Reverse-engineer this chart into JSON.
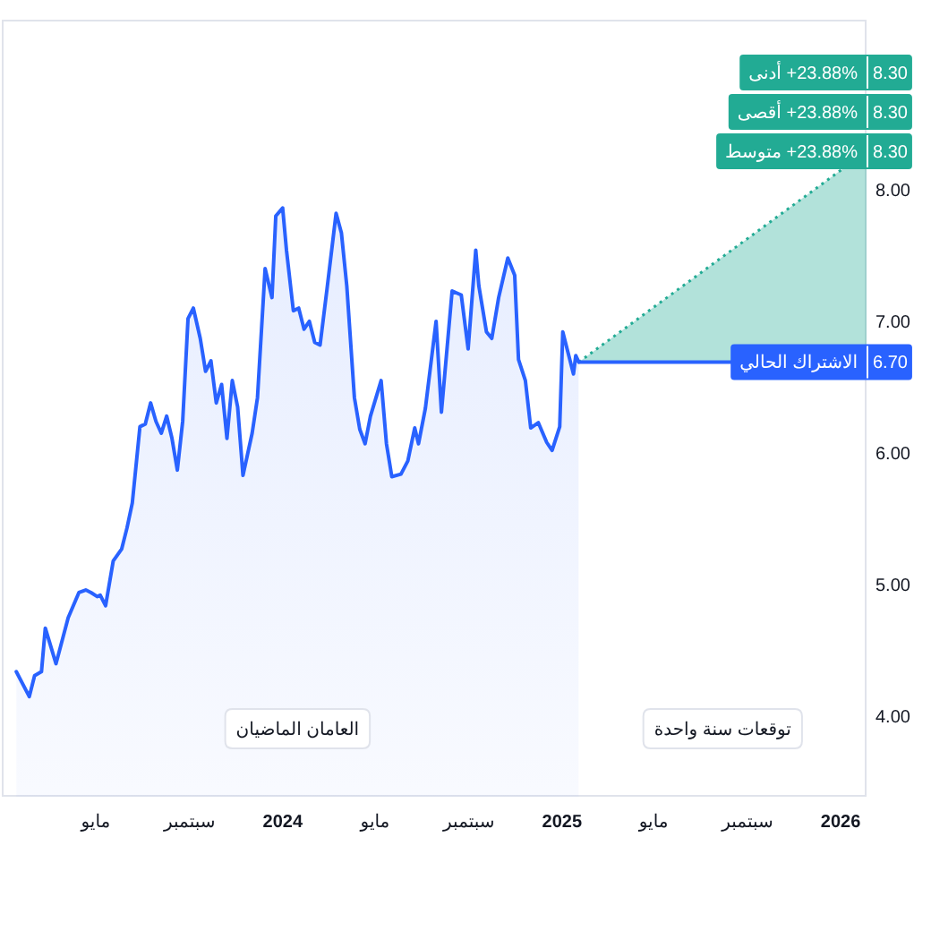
{
  "chart_data": {
    "type": "area",
    "xlim": [
      "2022-12-29",
      "2026-02-04"
    ],
    "xticks": [
      {
        "value": "2023-05-01",
        "label": "مايو"
      },
      {
        "value": "2023-09-01",
        "label": "سبتمبر"
      },
      {
        "value": "2024-01-01",
        "label": "2024"
      },
      {
        "value": "2024-05-01",
        "label": "مايو"
      },
      {
        "value": "2024-09-01",
        "label": "سبتمبر"
      },
      {
        "value": "2025-01-01",
        "label": "2025"
      },
      {
        "value": "2025-05-01",
        "label": "مايو"
      },
      {
        "value": "2025-09-01",
        "label": "سبتمبر"
      },
      {
        "value": "2026-01-01",
        "label": "2026"
      }
    ],
    "ylim": [
      3.4,
      9.3
    ],
    "yticks": [
      {
        "value": 4,
        "label": "4.00"
      },
      {
        "value": 5,
        "label": "5.00"
      },
      {
        "value": 6,
        "label": "6.00"
      },
      {
        "value": 7,
        "label": "7.00"
      },
      {
        "value": 8,
        "label": "8.00"
      }
    ],
    "series": [
      {
        "color": "#2962ff",
        "x": [
          "2023-01-17",
          "2023-02-03",
          "2023-02-10",
          "2023-02-19",
          "2023-02-24",
          "2023-03-10",
          "2023-03-26",
          "2023-04-09",
          "2023-04-18",
          "2023-04-25",
          "2023-05-03",
          "2023-05-07",
          "2023-05-14",
          "2023-05-24",
          "2023-06-04",
          "2023-06-11",
          "2023-06-18",
          "2023-06-28",
          "2023-07-05",
          "2023-07-12",
          "2023-07-19",
          "2023-07-26",
          "2023-08-02",
          "2023-08-09",
          "2023-08-16",
          "2023-08-23",
          "2023-08-30",
          "2023-09-06",
          "2023-09-15",
          "2023-09-22",
          "2023-09-29",
          "2023-10-06",
          "2023-10-13",
          "2023-10-20",
          "2023-10-27",
          "2023-11-03",
          "2023-11-10",
          "2023-11-22",
          "2023-11-29",
          "2023-12-09",
          "2023-12-18",
          "2023-12-23",
          "2024-01-01",
          "2024-01-06",
          "2024-01-15",
          "2024-01-22",
          "2024-01-29",
          "2024-02-05",
          "2024-02-12",
          "2024-02-19",
          "2024-02-28",
          "2024-03-11",
          "2024-03-18",
          "2024-03-25",
          "2024-04-04",
          "2024-04-11",
          "2024-04-18",
          "2024-04-25",
          "2024-05-09",
          "2024-05-16",
          "2024-05-23",
          "2024-06-04",
          "2024-06-13",
          "2024-06-22",
          "2024-06-27",
          "2024-07-06",
          "2024-07-20",
          "2024-07-27",
          "2024-08-10",
          "2024-08-22",
          "2024-08-31",
          "2024-09-10",
          "2024-09-14",
          "2024-09-24",
          "2024-10-01",
          "2024-10-10",
          "2024-10-22",
          "2024-10-31",
          "2024-11-05",
          "2024-11-14",
          "2024-11-21",
          "2024-12-01",
          "2024-12-12",
          "2024-12-19",
          "2024-12-29",
          "2025-01-02",
          "2025-01-16",
          "2025-01-19",
          "2025-01-23"
        ],
        "values": [
          4.35,
          4.16,
          4.32,
          4.35,
          4.68,
          4.41,
          4.76,
          4.95,
          4.97,
          4.95,
          4.92,
          4.93,
          4.85,
          5.19,
          5.28,
          5.44,
          5.63,
          6.21,
          6.23,
          6.39,
          6.25,
          6.16,
          6.29,
          6.12,
          5.88,
          6.25,
          7.03,
          7.11,
          6.88,
          6.63,
          6.71,
          6.39,
          6.53,
          6.12,
          6.56,
          6.36,
          5.84,
          6.16,
          6.43,
          7.41,
          7.19,
          7.81,
          7.87,
          7.55,
          7.09,
          7.11,
          6.95,
          7.01,
          6.85,
          6.83,
          7.25,
          7.83,
          7.68,
          7.28,
          6.43,
          6.19,
          6.08,
          6.29,
          6.56,
          6.08,
          5.83,
          5.85,
          5.95,
          6.2,
          6.08,
          6.35,
          7.01,
          6.32,
          7.24,
          7.21,
          6.8,
          7.55,
          7.28,
          6.93,
          6.88,
          7.19,
          7.49,
          7.36,
          6.72,
          6.56,
          6.2,
          6.24,
          6.09,
          6.03,
          6.21,
          6.93,
          6.61,
          6.75,
          6.7
        ]
      },
      {
        "type": "line",
        "color": "#2962ff",
        "x": [
          "2025-01-23",
          "2026-02-04"
        ],
        "values": [
          6.7,
          6.7
        ],
        "value_labels": [
          null,
          "6.70"
        ]
      },
      {
        "type": "line",
        "line_style": "dotted",
        "color": "#22ab94",
        "x": [
          "2025-01-23",
          "2026-02-04"
        ],
        "values": [
          6.7,
          8.3
        ],
        "lower": [
          6.7,
          6.7
        ],
        "upper": [
          6.7,
          8.3
        ],
        "value_labels": [
          null,
          "8.30"
        ]
      }
    ],
    "annotations": [
      "أدنى +23.88%",
      "أقصى +23.88%",
      {
        "text": "متوسط +23.88%",
        "x": "2026-02-04",
        "y": 8.3
      },
      {
        "text": "الاشتراك الحالي",
        "x": "2026-02-04",
        "y": 6.7
      },
      "العامان الماضيان",
      "توقعات سنة واحدة"
    ]
  }
}
